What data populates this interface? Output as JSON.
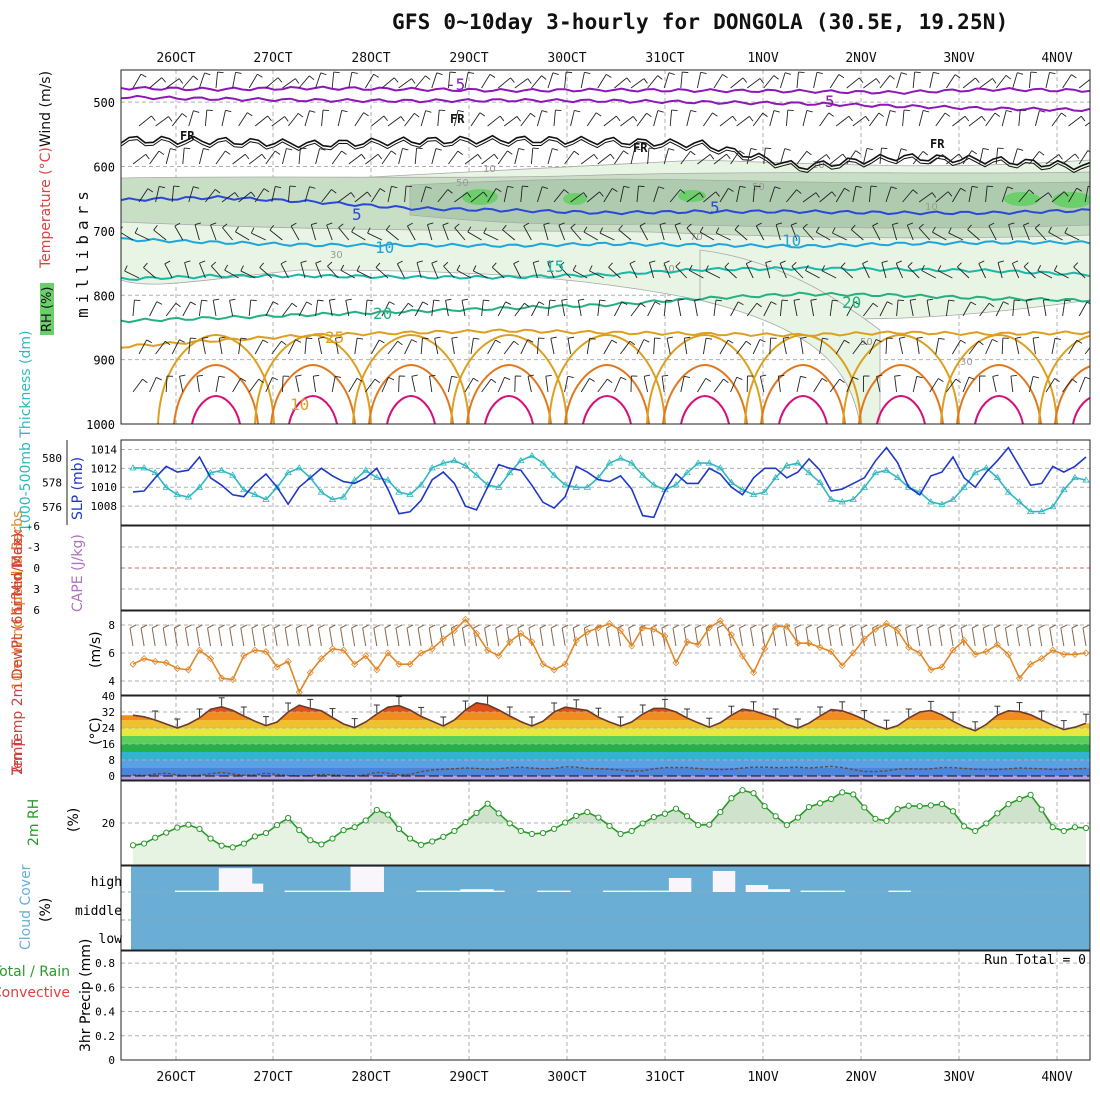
{
  "title": "GFS 0~10day 3-hourly for DONGOLA (30.5E, 19.25N)",
  "colors": {
    "rh_light": "#e8f4e4",
    "rh_mid": "#c8dfc6",
    "rh_dark": "#aecbb0",
    "rh_max": "#6ccf6c",
    "temp_m5": "#8c18b8",
    "temp_fr": "#111111",
    "temp_5": "#2a48d8",
    "temp_10": "#1ea6dc",
    "temp_15": "#18b8a8",
    "temp_20": "#24b080",
    "temp_25": "#dca020",
    "temp_30": "#e07820",
    "temp_35": "#d8107c",
    "slp": "#2038c8",
    "thickness": "#30b8c0",
    "wind10": "#e08828",
    "barb": "#8a6a50",
    "rh2m": "#2a9a2a",
    "cloud": "#6aaed6"
  },
  "chart_data": [
    {
      "type": "contour",
      "name": "upper-air-cross-section",
      "ylabel": "millibars",
      "side_label_parts": [
        "Wind (m/s)",
        "Temperature (°C)",
        "RH (%)"
      ],
      "yticks": [
        500,
        600,
        700,
        800,
        900,
        1000
      ],
      "ylim": [
        1000,
        450
      ],
      "dates_top": [
        "26OCT",
        "27OCT",
        "28OCT",
        "29OCT",
        "30OCT",
        "31OCT",
        "1NOV",
        "2NOV",
        "3NOV",
        "4NOV"
      ],
      "rh_labels": [
        "10",
        "50",
        "30",
        "10",
        "50",
        "70",
        "10",
        "10",
        "50",
        "30"
      ],
      "isotherms": [
        {
          "label": "-5",
          "levels": [
            478,
            480,
            478,
            480,
            482,
            481,
            482,
            483,
            485,
            480,
            482
          ]
        },
        {
          "label": "-5",
          "levels": [
            492,
            495,
            497,
            498,
            497,
            498,
            500,
            502,
            506,
            510,
            512
          ]
        },
        {
          "label": "FR",
          "levels": [
            558,
            560,
            565,
            560,
            558,
            560,
            565,
            600,
            585,
            590,
            600
          ]
        },
        {
          "label": "5",
          "levels": [
            652,
            648,
            655,
            665,
            668,
            672,
            670,
            670,
            672,
            672,
            668
          ]
        },
        {
          "label": "10",
          "levels": [
            713,
            718,
            722,
            722,
            723,
            720,
            722,
            724,
            720,
            718,
            718
          ]
        },
        {
          "label": "15",
          "levels": [
            775,
            770,
            770,
            772,
            772,
            768,
            760,
            758,
            760,
            762,
            768
          ]
        },
        {
          "label": "20",
          "levels": [
            840,
            835,
            830,
            825,
            820,
            815,
            805,
            798,
            800,
            805,
            808
          ]
        },
        {
          "label": "25",
          "levels": [
            880,
            870,
            862,
            858,
            855,
            858,
            860,
            862,
            858,
            860,
            858
          ]
        }
      ],
      "isotherm_labels": [
        "5",
        "-5",
        "FR",
        "FR",
        "FR",
        "FR",
        "5",
        "5",
        "10",
        "10",
        "15",
        "20",
        "20",
        "25",
        "10"
      ]
    },
    {
      "type": "line",
      "name": "slp-thickness",
      "left_label": "1000-500mb Thickness (dm)",
      "right_label": "SLP (mb)",
      "left_ticks": [
        "580",
        "578",
        "576"
      ],
      "right_ticks": [
        "1014",
        "1012",
        "1010",
        "1008"
      ],
      "series": [
        {
          "name": "SLP (mb)",
          "ylim": [
            1006,
            1015
          ],
          "values": [
            1009.5,
            1009.6,
            1011.0,
            1012.2,
            1011.6,
            1011.8,
            1013.2,
            1011.0,
            1010.2,
            1009.2,
            1009.0,
            1010.4,
            1011.4,
            1010.0,
            1008.2,
            1010.0,
            1011.0,
            1012.0,
            1011.2,
            1010.6,
            1010.4,
            1011.0,
            1012.0,
            1009.8,
            1007.2,
            1007.4,
            1008.6,
            1010.8,
            1011.6,
            1010.4,
            1008.0,
            1007.6,
            1010.0,
            1012.4,
            1012.0,
            1011.8,
            1010.2,
            1008.4,
            1007.8,
            1009.0,
            1012.2,
            1011.6,
            1010.8,
            1010.6,
            1011.2,
            1009.8,
            1007.0,
            1006.8,
            1009.6,
            1011.4,
            1010.4,
            1010.4,
            1012.0,
            1011.4,
            1010.0,
            1009.2,
            1011.0,
            1012.0,
            1012.0,
            1011.0,
            1011.6,
            1013.0,
            1011.8,
            1009.6,
            1009.8,
            1010.4,
            1011.0,
            1012.8,
            1014.2,
            1012.6,
            1010.0,
            1009.2,
            1011.2,
            1011.6,
            1013.2,
            1011.0,
            1010.0,
            1011.6,
            1012.8,
            1014.2,
            1012.2,
            1010.2,
            1010.4,
            1012.2,
            1011.6,
            1012.2,
            1013.2
          ]
        },
        {
          "name": "1000-500mb Thickness (dm)",
          "ylim": [
            574.5,
            581.5
          ],
          "values": [
            579.2,
            579.2,
            578.8,
            577.6,
            577.0,
            576.8,
            577.6,
            578.8,
            579.0,
            578.6,
            577.4,
            577.0,
            576.6,
            577.6,
            578.8,
            579.2,
            578.4,
            577.2,
            576.6,
            576.8,
            578.2,
            579.0,
            578.4,
            578.2,
            577.2,
            577.0,
            577.8,
            579.2,
            579.6,
            579.8,
            579.4,
            578.6,
            577.8,
            577.6,
            578.8,
            579.8,
            580.2,
            579.6,
            578.6,
            577.8,
            577.6,
            577.6,
            578.4,
            579.6,
            580.0,
            579.6,
            578.6,
            577.8,
            577.4,
            577.8,
            578.8,
            579.6,
            579.6,
            579.2,
            578.0,
            577.4,
            577.0,
            577.2,
            578.4,
            579.4,
            579.6,
            578.8,
            578.0,
            576.6,
            576.4,
            576.6,
            577.6,
            578.8,
            579.0,
            578.4,
            577.6,
            577.2,
            576.4,
            576.2,
            576.6,
            577.6,
            578.8,
            579.2,
            578.4,
            577.2,
            576.4,
            575.6,
            575.6,
            576.0,
            577.4,
            578.4,
            578.2
          ]
        }
      ]
    },
    {
      "type": "line",
      "name": "lifted-index-cape",
      "left_label": "Lifted Index",
      "right_label": "CAPE (J/kg)",
      "yticks": [
        "-6",
        "-3",
        "0",
        "3",
        "6"
      ],
      "ylim": [
        -6,
        6
      ],
      "series": [
        {
          "name": "Lifted Index",
          "values": []
        }
      ]
    },
    {
      "type": "line",
      "name": "wind10m",
      "label": "10m Wind Speed & Barbs",
      "unit": "(m/s)",
      "yticks": [
        "8",
        "6",
        "4"
      ],
      "ylim": [
        3,
        9
      ],
      "series": [
        {
          "name": "10m Wind Speed (m/s)",
          "values": [
            5.2,
            5.6,
            5.4,
            5.3,
            4.9,
            4.8,
            6.2,
            5.6,
            4.2,
            4.1,
            5.8,
            6.2,
            6.1,
            5.0,
            5.4,
            3.2,
            4.6,
            5.6,
            6.3,
            6.2,
            5.2,
            5.8,
            4.8,
            6.0,
            5.2,
            5.2,
            6.0,
            6.3,
            7.0,
            7.6,
            8.4,
            7.4,
            6.2,
            5.8,
            6.8,
            7.4,
            6.8,
            5.2,
            4.8,
            5.2,
            6.9,
            7.5,
            7.8,
            8.1,
            7.6,
            6.5,
            7.8,
            7.7,
            7.2,
            5.3,
            6.8,
            6.6,
            7.8,
            8.3,
            7.3,
            5.8,
            4.6,
            6.3,
            7.9,
            7.9,
            6.7,
            6.7,
            6.4,
            6.1,
            5.1,
            6.0,
            7.0,
            7.7,
            8.1,
            7.6,
            6.4,
            6.0,
            4.8,
            5.0,
            6.2,
            6.9,
            5.9,
            6.1,
            6.6,
            5.9,
            4.2,
            5.2,
            5.6,
            6.2,
            5.9,
            5.9,
            6.0
          ]
        }
      ]
    },
    {
      "type": "area",
      "name": "temp-dewpoint",
      "label": "2m Temp 2m DewPt (6hr Min/Max)",
      "unit": "(°C)",
      "yticks": [
        "40",
        "32",
        "24",
        "16",
        "8",
        "0"
      ],
      "ylim": [
        -2,
        40
      ],
      "series": [
        {
          "name": "2m Temp",
          "values": [
            30.4,
            29.6,
            28.0,
            26.0,
            24.0,
            26.0,
            29.0,
            33.4,
            34.6,
            32.8,
            30.0,
            27.4,
            25.2,
            27.0,
            32.0,
            35.4,
            33.8,
            32.6,
            29.2,
            26.0,
            24.2,
            27.0,
            31.0,
            34.4,
            35.2,
            33.0,
            29.8,
            27.4,
            25.0,
            28.0,
            33.0,
            36.6,
            35.6,
            33.0,
            30.0,
            27.2,
            25.0,
            27.4,
            32.0,
            34.4,
            33.6,
            32.8,
            29.4,
            27.0,
            25.0,
            27.0,
            31.0,
            33.8,
            33.8,
            32.0,
            29.0,
            26.6,
            24.4,
            26.6,
            30.4,
            33.4,
            32.6,
            30.8,
            29.0,
            25.8,
            24.0,
            26.4,
            30.0,
            33.2,
            32.6,
            30.6,
            28.2,
            25.4,
            23.4,
            25.2,
            29.0,
            32.0,
            32.8,
            30.6,
            27.4,
            24.6,
            22.6,
            25.8,
            30.4,
            32.6,
            32.2,
            30.6,
            28.0,
            25.4,
            23.2,
            24.4,
            26.4
          ]
        },
        {
          "name": "2m DewPt",
          "values": [
            0.6,
            0.2,
            1.0,
            1.4,
            0.6,
            0.2,
            0.4,
            1.2,
            1.8,
            1.0,
            0.4,
            0.6,
            1.4,
            0.8,
            0.2,
            0.0,
            0.2,
            0.8,
            0.6,
            0.2,
            0.0,
            0.6,
            1.8,
            1.4,
            0.6,
            0.8,
            2.2,
            3.0,
            3.4,
            3.6,
            4.0,
            3.8,
            3.4,
            3.6,
            4.2,
            4.4,
            4.0,
            3.6,
            3.8,
            4.6,
            4.4,
            3.8,
            3.6,
            3.4,
            3.0,
            2.4,
            2.6,
            3.6,
            4.2,
            4.2,
            4.2,
            3.8,
            3.4,
            3.2,
            3.4,
            4.0,
            4.4,
            4.4,
            4.2,
            4.2,
            4.4,
            4.0,
            4.4,
            4.8,
            4.2,
            3.2,
            2.2,
            2.2,
            2.6,
            3.4,
            3.6,
            3.4,
            3.6,
            4.2,
            4.2,
            3.8,
            3.4,
            3.2,
            3.2,
            3.6,
            4.0,
            3.8,
            3.6,
            3.2,
            3.4,
            3.6,
            3.8
          ]
        }
      ]
    },
    {
      "type": "area",
      "name": "rh2m",
      "label": "2m RH",
      "unit": "(%)",
      "yticks": [
        "20"
      ],
      "ylim": [
        0,
        40
      ],
      "series": [
        {
          "name": "2m RH (%)",
          "values": [
            9.4,
            10.2,
            13.0,
            15.4,
            17.8,
            19.2,
            17.2,
            12.6,
            9.2,
            8.4,
            10.2,
            13.6,
            15.2,
            19.0,
            22.4,
            16.6,
            11.8,
            9.8,
            12.6,
            16.6,
            18.0,
            21.2,
            26.2,
            24.0,
            17.2,
            12.6,
            9.6,
            11.2,
            13.4,
            16.2,
            20.4,
            24.8,
            29.2,
            24.6,
            19.8,
            16.2,
            14.8,
            15.2,
            17.2,
            20.2,
            23.4,
            25.2,
            22.6,
            18.6,
            14.8,
            16.2,
            19.8,
            22.8,
            24.4,
            26.8,
            23.2,
            19.0,
            19.2,
            25.2,
            31.8,
            35.6,
            34.2,
            28.0,
            23.2,
            19.0,
            22.6,
            27.6,
            29.4,
            31.4,
            34.6,
            33.6,
            27.4,
            22.0,
            21.0,
            26.6,
            28.2,
            28.0,
            28.4,
            29.0,
            25.6,
            18.4,
            16.2,
            19.8,
            24.6,
            29.0,
            31.4,
            33.4,
            26.4,
            18.0,
            16.2,
            18.0,
            17.6
          ]
        }
      ]
    },
    {
      "type": "bar",
      "name": "cloud-cover",
      "label": "Cloud Cover",
      "unit": "(%)",
      "levels": [
        "high",
        "middle",
        "low"
      ],
      "series": [
        {
          "name": "High cloud (%)",
          "values": [
            0,
            0,
            0,
            0,
            5,
            5,
            5,
            5,
            85,
            85,
            85,
            30,
            0,
            0,
            5,
            5,
            5,
            5,
            5,
            5,
            90,
            90,
            90,
            0,
            0,
            0,
            5,
            5,
            5,
            5,
            10,
            10,
            10,
            5,
            0,
            0,
            0,
            5,
            5,
            5,
            0,
            0,
            0,
            5,
            5,
            5,
            5,
            5,
            5,
            50,
            50,
            0,
            0,
            75,
            75,
            0,
            25,
            25,
            10,
            10,
            0,
            5,
            5,
            5,
            5,
            0,
            0,
            0,
            0,
            5,
            5,
            0,
            0,
            0,
            0,
            0,
            0,
            0,
            0,
            0,
            0,
            0,
            0,
            0,
            0,
            0,
            0
          ]
        }
      ]
    },
    {
      "type": "bar",
      "name": "precip",
      "label_total": "Total / Rain",
      "label_convective": "Convective",
      "unit": "3hr Precip (mm)",
      "yticks": [
        "0.8",
        "0.6",
        "0.4",
        "0.2",
        "0"
      ],
      "ylim": [
        0,
        0.9
      ],
      "run_total_label": "Run Total = 0",
      "series": [
        {
          "name": "3hr Precip (mm)",
          "values": []
        }
      ]
    }
  ],
  "dates_bottom": [
    "26OCT",
    "27OCT",
    "28OCT",
    "29OCT",
    "30OCT",
    "31OCT",
    "1NOV",
    "2NOV",
    "3NOV",
    "4NOV"
  ]
}
